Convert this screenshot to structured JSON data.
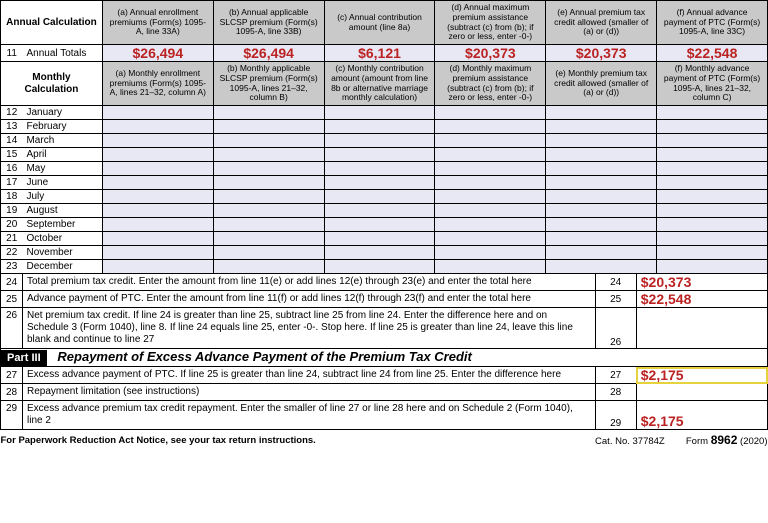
{
  "annual": {
    "calc_label": "Annual Calculation",
    "cols": {
      "a": "(a) Annual enrollment premiums (Form(s) 1095-A, line 33A)",
      "b": "(b) Annual applicable SLCSP premium (Form(s) 1095-A, line 33B)",
      "c": "(c) Annual contribution amount (line 8a)",
      "d": "(d) Annual maximum premium assistance (subtract (c) from (b); if zero or less, enter -0-)",
      "e": "(e) Annual premium tax credit allowed (smaller of (a) or (d))",
      "f": "(f) Annual advance payment of PTC (Form(s) 1095-A, line 33C)"
    },
    "totals_num": "11",
    "totals_label": "Annual Totals",
    "totals": {
      "a": "$26,494",
      "b": "$26,494",
      "c": "$6,121",
      "d": "$20,373",
      "e": "$20,373",
      "f": "$22,548"
    }
  },
  "monthly": {
    "calc_label": "Monthly Calculation",
    "cols": {
      "a": "(a) Monthly enrollment premiums (Form(s) 1095-A, lines 21–32, column A)",
      "b": "(b) Monthly applicable SLCSP premium (Form(s) 1095-A, lines 21–32, column B)",
      "c": "(c) Monthly contribution amount (amount from line 8b or alternative marriage monthly calculation)",
      "d": "(d) Monthly maximum premium assistance (subtract (c) from (b); if zero or less, enter -0-)",
      "e": "(e) Monthly premium tax credit allowed (smaller of (a) or (d))",
      "f": "(f) Monthly advance payment of PTC (Form(s) 1095-A, lines 21–32, column C)"
    },
    "rows": [
      {
        "n": "12",
        "m": "January"
      },
      {
        "n": "13",
        "m": "February"
      },
      {
        "n": "14",
        "m": "March"
      },
      {
        "n": "15",
        "m": "April"
      },
      {
        "n": "16",
        "m": "May"
      },
      {
        "n": "17",
        "m": "June"
      },
      {
        "n": "18",
        "m": "July"
      },
      {
        "n": "19",
        "m": "August"
      },
      {
        "n": "20",
        "m": "September"
      },
      {
        "n": "21",
        "m": "October"
      },
      {
        "n": "22",
        "m": "November"
      },
      {
        "n": "23",
        "m": "December"
      }
    ]
  },
  "lines": {
    "l24": {
      "n": "24",
      "txt": "Total premium tax credit. Enter the amount from line 11(e) or add lines 12(e) through 23(e) and enter the total here",
      "val": "$20,373"
    },
    "l25": {
      "n": "25",
      "txt": "Advance payment of PTC. Enter the amount from line 11(f) or add lines 12(f) through 23(f) and enter the total here",
      "val": "$22,548"
    },
    "l26": {
      "n": "26",
      "txt": "Net premium tax credit. If line 24 is greater than line 25, subtract line 25 from line 24. Enter the difference here and on Schedule 3 (Form 1040), line 8. If line 24 equals line 25, enter -0-. Stop here. If line 25 is greater than line 24, leave this line blank and continue to line 27",
      "val": ""
    }
  },
  "part3": {
    "label": "Part III",
    "title": "Repayment of Excess Advance Payment of the Premium Tax Credit",
    "l27": {
      "n": "27",
      "txt": "Excess advance payment of PTC. If line 25 is greater than line 24, subtract line 24 from line 25. Enter the difference here",
      "val": "$2,175"
    },
    "l28": {
      "n": "28",
      "txt": "Repayment limitation (see instructions)",
      "val": ""
    },
    "l29": {
      "n": "29",
      "txt": "Excess advance premium tax credit repayment. Enter the smaller of line 27 or line 28 here and on Schedule 2 (Form 1040), line 2",
      "val": "$2,175"
    }
  },
  "footer": {
    "left": "For Paperwork Reduction Act Notice, see your tax return instructions.",
    "mid": "Cat. No. 37784Z",
    "right_form": "Form ",
    "right_num": "8962",
    "right_year": " (2020)"
  }
}
